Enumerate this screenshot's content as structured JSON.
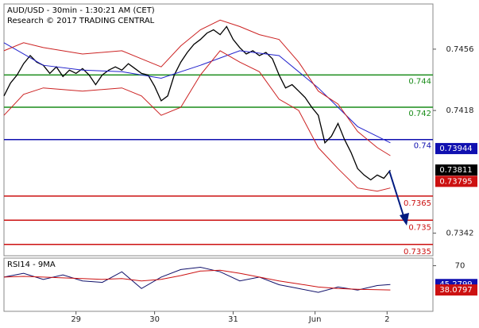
{
  "chart_data": [
    {
      "type": "line",
      "title": "AUD/USD - 30min - 1:30:21 AM (CET)",
      "subtitle": "Research © 2017 TRADING CENTRAL",
      "xlim": [
        0,
        131
      ],
      "ylim": [
        0.7328,
        0.7484
      ],
      "yticks": [
        0.7456,
        0.7418,
        0.7342
      ],
      "series": [
        {
          "color": "#000000",
          "x": [
            0,
            2,
            4,
            6,
            8,
            10,
            12,
            14,
            16,
            18,
            20,
            22,
            24,
            26,
            28,
            30,
            32,
            34,
            36,
            38,
            40,
            42,
            44,
            46,
            48,
            50,
            52,
            54,
            56,
            58,
            60,
            62,
            64,
            66,
            68,
            70,
            72,
            74,
            76,
            78,
            80,
            82,
            84,
            86,
            88,
            90,
            92,
            94,
            96,
            98,
            100,
            102,
            104,
            106,
            108,
            110,
            112,
            114,
            116,
            118
          ],
          "values": [
            0.7427,
            0.7435,
            0.744,
            0.7447,
            0.7452,
            0.7448,
            0.7446,
            0.7441,
            0.7445,
            0.7439,
            0.7443,
            0.7441,
            0.7444,
            0.744,
            0.7434,
            0.744,
            0.7443,
            0.7445,
            0.7443,
            0.7447,
            0.7444,
            0.7441,
            0.744,
            0.7433,
            0.7424,
            0.7427,
            0.744,
            0.7448,
            0.7454,
            0.7459,
            0.7462,
            0.7466,
            0.7468,
            0.7465,
            0.747,
            0.7462,
            0.7457,
            0.7453,
            0.7455,
            0.7452,
            0.7454,
            0.745,
            0.744,
            0.7432,
            0.7434,
            0.743,
            0.7426,
            0.742,
            0.7415,
            0.7398,
            0.7402,
            0.741,
            0.74,
            0.7392,
            0.7382,
            0.7378,
            0.7375,
            0.7378,
            0.7376,
            0.7381
          ]
        },
        {
          "color": "#2222cc",
          "x": [
            0,
            12,
            24,
            36,
            48,
            60,
            72,
            84,
            96,
            108,
            118
          ],
          "values": [
            0.746,
            0.7446,
            0.7443,
            0.7442,
            0.7438,
            0.7446,
            0.7455,
            0.7452,
            0.7432,
            0.7408,
            0.7398
          ]
        },
        {
          "color": "#cc2222",
          "x": [
            0,
            6,
            12,
            24,
            36,
            42,
            48,
            54,
            60,
            66,
            72,
            78,
            84,
            90,
            96,
            102,
            108,
            114,
            118
          ],
          "values": [
            0.7455,
            0.746,
            0.7457,
            0.7453,
            0.7455,
            0.745,
            0.7445,
            0.7458,
            0.7468,
            0.7474,
            0.747,
            0.7465,
            0.7462,
            0.7448,
            0.743,
            0.7422,
            0.7405,
            0.7395,
            0.739
          ]
        },
        {
          "color": "#cc2222",
          "x": [
            0,
            6,
            12,
            24,
            36,
            42,
            48,
            54,
            60,
            66,
            72,
            78,
            84,
            90,
            96,
            102,
            108,
            114,
            118
          ],
          "values": [
            0.7415,
            0.7428,
            0.7432,
            0.743,
            0.7432,
            0.7427,
            0.7415,
            0.742,
            0.744,
            0.7455,
            0.7448,
            0.7442,
            0.7425,
            0.7418,
            0.7395,
            0.7382,
            0.737,
            0.7368,
            0.737
          ]
        }
      ],
      "levels": [
        {
          "value": 0.744,
          "color": "#1a8c1a"
        },
        {
          "value": 0.742,
          "color": "#1a8c1a"
        },
        {
          "value": 0.74,
          "color": "#1010b0"
        },
        {
          "value": 0.7365,
          "color": "#cc1111"
        },
        {
          "value": 0.735,
          "color": "#cc1111"
        },
        {
          "value": 0.7335,
          "color": "#cc1111"
        }
      ],
      "price_tags": [
        {
          "value": 0.73944,
          "color": "#1010b0"
        },
        {
          "value": 0.73811,
          "color": "#000000"
        },
        {
          "value": 0.73795,
          "color": "#cc1111"
        }
      ]
    },
    {
      "type": "line",
      "title": "RSI14 - 9MA",
      "xlim": [
        0,
        131
      ],
      "ylim": [
        10,
        80
      ],
      "yticks": [
        70
      ],
      "xticks": [
        {
          "value": 22,
          "label": "29"
        },
        {
          "value": 46,
          "label": "30"
        },
        {
          "value": 70,
          "label": "31"
        },
        {
          "value": 95,
          "label": "Jun"
        },
        {
          "value": 117,
          "label": "2"
        }
      ],
      "series": [
        {
          "color": "#10106a",
          "x": [
            0,
            6,
            12,
            18,
            24,
            30,
            36,
            42,
            48,
            54,
            60,
            66,
            72,
            78,
            84,
            90,
            96,
            102,
            108,
            114,
            118
          ],
          "values": [
            55,
            60,
            52,
            58,
            50,
            48,
            62,
            40,
            55,
            65,
            68,
            62,
            50,
            55,
            45,
            40,
            35,
            42,
            38,
            44,
            45.2799
          ]
        },
        {
          "color": "#cc1111",
          "x": [
            0,
            6,
            12,
            18,
            24,
            30,
            36,
            42,
            48,
            54,
            60,
            66,
            72,
            78,
            84,
            90,
            96,
            102,
            108,
            114,
            118
          ],
          "values": [
            55,
            56,
            55,
            54,
            53,
            52,
            53,
            50,
            52,
            57,
            63,
            64,
            60,
            55,
            50,
            46,
            42,
            40,
            39,
            38.5,
            38.0797
          ]
        }
      ],
      "price_tags": [
        {
          "value": 45.2799,
          "color": "#1010b0"
        },
        {
          "value": 38.0797,
          "color": "#cc1111"
        }
      ]
    }
  ]
}
